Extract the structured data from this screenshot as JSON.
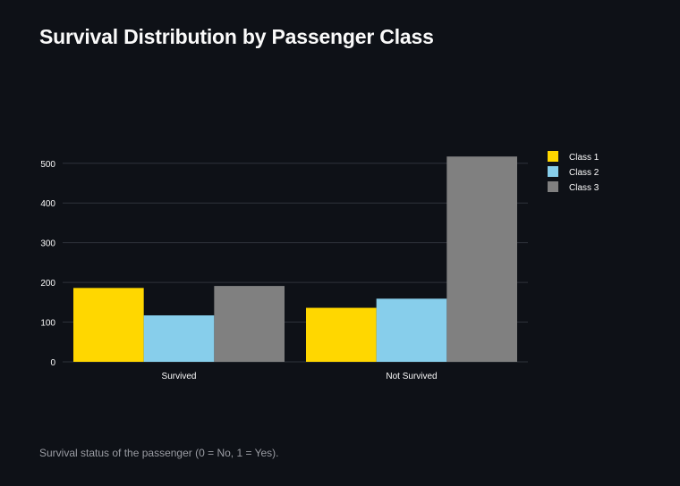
{
  "page": {
    "title": "Survival Distribution by Passenger Class",
    "caption": "Survival status of the passenger (0 = No, 1 = Yes)."
  },
  "colors": {
    "background": "#0e1117",
    "grid": "#2e323b",
    "axis_text": "#fafafa",
    "series": [
      "#ffd700",
      "#87ceeb",
      "#808080"
    ]
  },
  "chart_data": {
    "type": "bar",
    "title": "",
    "xlabel": "",
    "ylabel": "",
    "categories": [
      "Survived",
      "Not Survived"
    ],
    "series": [
      {
        "name": "Class 1",
        "values": [
          186,
          136
        ]
      },
      {
        "name": "Class 2",
        "values": [
          117,
          159
        ]
      },
      {
        "name": "Class 3",
        "values": [
          191,
          517
        ]
      }
    ],
    "ylim": [
      0,
      520
    ],
    "yticks": [
      0,
      100,
      200,
      300,
      400,
      500
    ],
    "grid": true,
    "legend_position": "top-right"
  }
}
